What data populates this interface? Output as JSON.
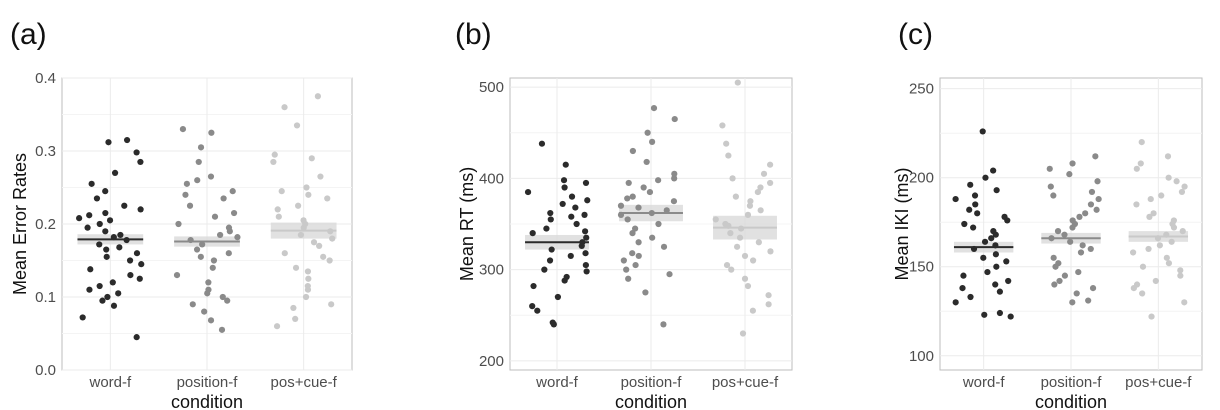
{
  "colors": {
    "word-f": "#2b2b2b",
    "position-f": "#8a8a8a",
    "pos+cue-f": "#c9c9c9",
    "ci_band": "#d9d9d9",
    "panel_border": "#bdbdbd",
    "grid_major": "#ebebeb",
    "grid_minor": "#f4f4f4",
    "tick_text": "#4d4d4d"
  },
  "chart_data": [
    {
      "type": "scatter",
      "panel_label": "(a)",
      "xlabel": "condition",
      "ylabel": "Mean Error Rates",
      "categories": [
        "word-f",
        "position-f",
        "pos+cue-f"
      ],
      "ylim": [
        0.0,
        0.4
      ],
      "yticks": [
        "0.0",
        "0.1",
        "0.2",
        "0.3",
        "0.4"
      ],
      "grid": true,
      "series": [
        {
          "category": "word-f",
          "mean": 0.179,
          "ci": [
            0.172,
            0.186
          ],
          "values": [
            0.045,
            0.072,
            0.088,
            0.095,
            0.1,
            0.105,
            0.11,
            0.115,
            0.12,
            0.125,
            0.13,
            0.138,
            0.145,
            0.15,
            0.155,
            0.16,
            0.165,
            0.168,
            0.172,
            0.178,
            0.182,
            0.185,
            0.19,
            0.195,
            0.2,
            0.205,
            0.208,
            0.212,
            0.215,
            0.22,
            0.225,
            0.235,
            0.245,
            0.255,
            0.27,
            0.285,
            0.298,
            0.312,
            0.315
          ]
        },
        {
          "category": "position-f",
          "mean": 0.176,
          "ci": [
            0.169,
            0.183
          ],
          "values": [
            0.055,
            0.068,
            0.08,
            0.09,
            0.095,
            0.1,
            0.105,
            0.11,
            0.12,
            0.13,
            0.14,
            0.15,
            0.155,
            0.16,
            0.165,
            0.172,
            0.178,
            0.182,
            0.185,
            0.19,
            0.195,
            0.2,
            0.21,
            0.215,
            0.225,
            0.235,
            0.24,
            0.245,
            0.255,
            0.26,
            0.265,
            0.285,
            0.305,
            0.325,
            0.33
          ]
        },
        {
          "category": "pos+cue-f",
          "mean": 0.191,
          "ci": [
            0.18,
            0.202
          ],
          "values": [
            0.06,
            0.07,
            0.085,
            0.09,
            0.1,
            0.11,
            0.115,
            0.125,
            0.135,
            0.14,
            0.15,
            0.155,
            0.16,
            0.17,
            0.175,
            0.18,
            0.185,
            0.19,
            0.195,
            0.2,
            0.205,
            0.21,
            0.22,
            0.225,
            0.235,
            0.24,
            0.245,
            0.25,
            0.265,
            0.285,
            0.29,
            0.295,
            0.335,
            0.36,
            0.375
          ]
        }
      ]
    },
    {
      "type": "scatter",
      "panel_label": "(b)",
      "xlabel": "condition",
      "ylabel": "Mean RT (ms)",
      "categories": [
        "word-f",
        "position-f",
        "pos+cue-f"
      ],
      "ylim": [
        190,
        510
      ],
      "yticks": [
        "200",
        "300",
        "400",
        "500"
      ],
      "grid": true,
      "series": [
        {
          "category": "word-f",
          "mean": 330,
          "ci": [
            322,
            338
          ],
          "values": [
            240,
            242,
            255,
            260,
            270,
            282,
            288,
            292,
            298,
            300,
            305,
            310,
            315,
            318,
            322,
            326,
            330,
            335,
            340,
            342,
            345,
            350,
            355,
            358,
            360,
            362,
            368,
            372,
            376,
            380,
            385,
            390,
            395,
            398,
            415,
            438
          ]
        },
        {
          "category": "position-f",
          "mean": 362,
          "ci": [
            353,
            371
          ],
          "values": [
            240,
            275,
            290,
            295,
            300,
            305,
            310,
            315,
            318,
            325,
            330,
            335,
            340,
            345,
            350,
            355,
            360,
            362,
            365,
            368,
            370,
            375,
            378,
            380,
            385,
            390,
            395,
            398,
            400,
            405,
            418,
            430,
            440,
            450,
            465,
            477
          ]
        },
        {
          "category": "pos+cue-f",
          "mean": 346,
          "ci": [
            333,
            359
          ],
          "values": [
            230,
            255,
            262,
            272,
            282,
            290,
            300,
            305,
            310,
            315,
            320,
            325,
            330,
            335,
            340,
            345,
            348,
            350,
            355,
            360,
            365,
            370,
            375,
            380,
            385,
            390,
            395,
            400,
            405,
            415,
            425,
            438,
            458,
            505
          ]
        }
      ]
    },
    {
      "type": "scatter",
      "panel_label": "(c)",
      "xlabel": "condition",
      "ylabel": "Mean IKI (ms)",
      "categories": [
        "word-f",
        "position-f",
        "pos+cue-f"
      ],
      "ylim": [
        92,
        256
      ],
      "yticks": [
        "100",
        "150",
        "200",
        "250"
      ],
      "grid": true,
      "series": [
        {
          "category": "word-f",
          "mean": 161,
          "ci": [
            158,
            164
          ],
          "values": [
            122,
            123,
            124,
            130,
            133,
            136,
            138,
            140,
            142,
            145,
            147,
            150,
            153,
            155,
            157,
            160,
            162,
            164,
            166,
            168,
            170,
            172,
            174,
            176,
            178,
            180,
            182,
            185,
            188,
            190,
            193,
            196,
            200,
            204,
            226
          ]
        },
        {
          "category": "position-f",
          "mean": 166,
          "ci": [
            163,
            169
          ],
          "values": [
            130,
            131,
            135,
            138,
            140,
            142,
            145,
            147,
            150,
            152,
            155,
            158,
            160,
            162,
            164,
            166,
            168,
            170,
            172,
            174,
            176,
            178,
            180,
            182,
            185,
            188,
            190,
            192,
            195,
            198,
            202,
            205,
            208,
            212
          ]
        },
        {
          "category": "pos+cue-f",
          "mean": 167,
          "ci": [
            164,
            170
          ],
          "values": [
            122,
            130,
            135,
            138,
            140,
            142,
            145,
            148,
            150,
            152,
            155,
            158,
            160,
            162,
            164,
            166,
            168,
            170,
            172,
            174,
            176,
            178,
            180,
            185,
            188,
            190,
            192,
            195,
            198,
            200,
            205,
            208,
            212,
            220
          ]
        }
      ]
    }
  ]
}
